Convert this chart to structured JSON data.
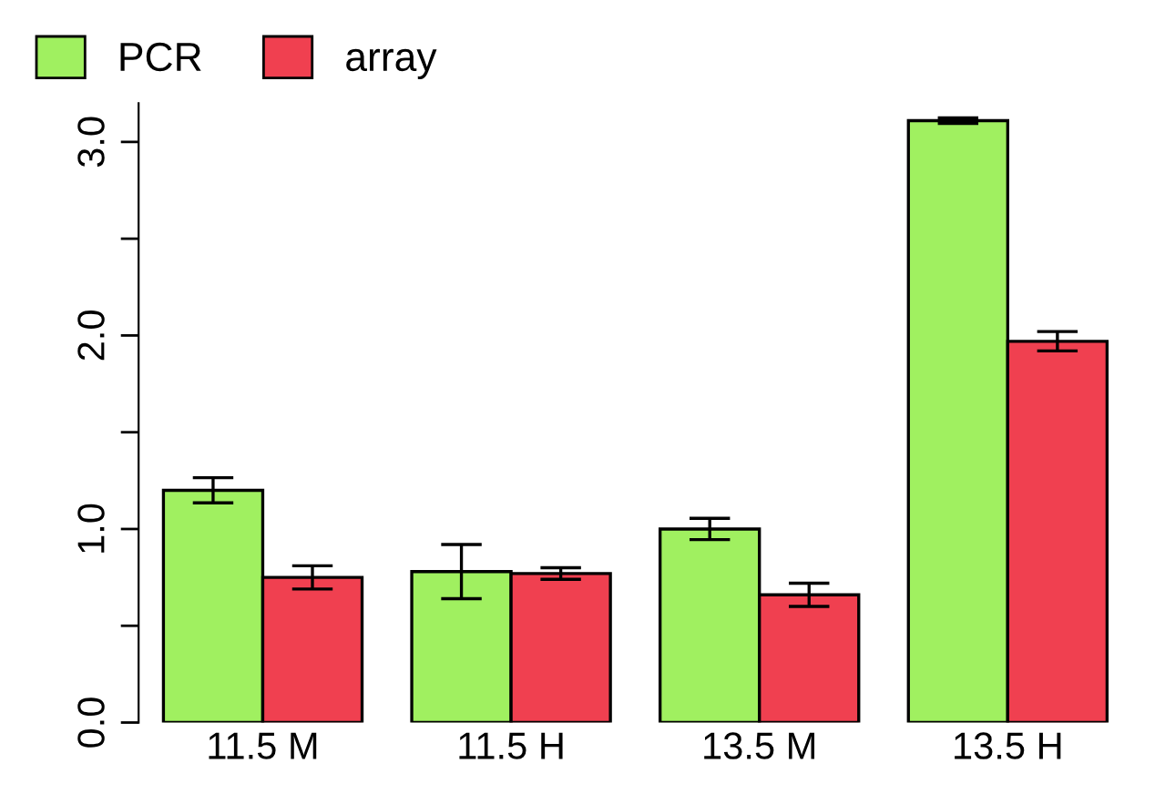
{
  "chart_data": {
    "type": "bar",
    "categories": [
      "11.5 M",
      "11.5 H",
      "13.5 M",
      "13.5 H"
    ],
    "series": [
      {
        "name": "PCR",
        "color": "#a0f060",
        "values": [
          1.2,
          0.78,
          1.0,
          3.11
        ],
        "errors": [
          0.065,
          0.14,
          0.055,
          0.015
        ]
      },
      {
        "name": "array",
        "color": "#f04050",
        "values": [
          0.75,
          0.77,
          0.66,
          1.97
        ],
        "errors": [
          0.06,
          0.03,
          0.06,
          0.05
        ]
      }
    ],
    "ylim": [
      0,
      3.2
    ],
    "yticks": [
      {
        "value": 0,
        "label": "0.0"
      },
      {
        "value": 0.5,
        "label": null
      },
      {
        "value": 1,
        "label": "1.0"
      },
      {
        "value": 1.5,
        "label": null
      },
      {
        "value": 2,
        "label": "2.0"
      },
      {
        "value": 2.5,
        "label": null
      },
      {
        "value": 3,
        "label": "3.0"
      }
    ],
    "grid": false,
    "legend": "top left"
  }
}
